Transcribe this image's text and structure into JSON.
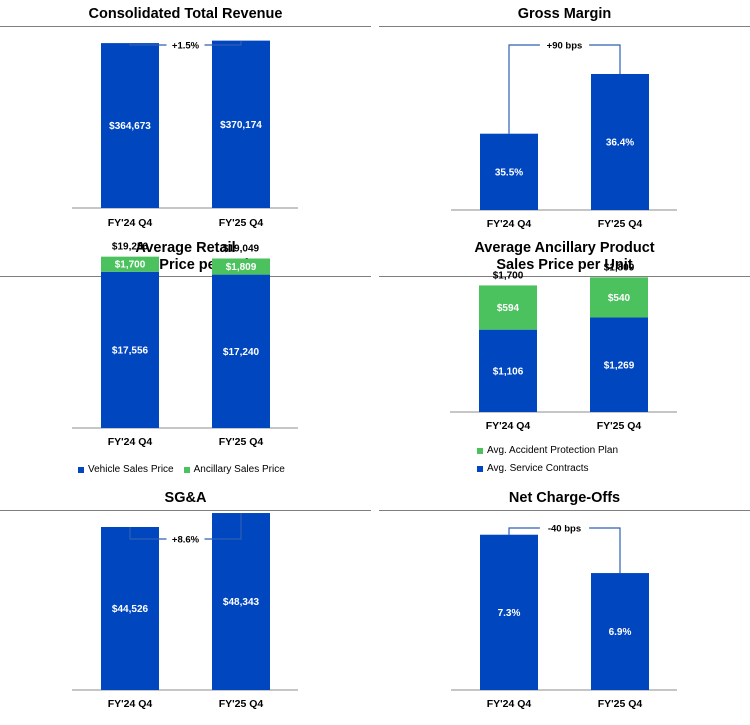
{
  "colors": {
    "primary": "#0046bf",
    "secondary": "#4cc25f",
    "connector": "#2f5fb3",
    "axis": "#8c8c8c",
    "rule": "#7f7f7f"
  },
  "chart_data": [
    {
      "id": "revenue",
      "type": "bar",
      "title": "Consolidated Total Revenue",
      "categories": [
        "FY'24 Q4",
        "FY'25 Q4"
      ],
      "values": [
        364673,
        370174
      ],
      "labels": [
        "$364,673",
        "$370,174"
      ],
      "change_label": "+1.5%",
      "ylim": [
        0,
        460000
      ]
    },
    {
      "id": "gross-margin",
      "type": "bar",
      "title": "Gross Margin",
      "categories": [
        "FY'24 Q4",
        "FY'25 Q4"
      ],
      "values": [
        35.5,
        36.4
      ],
      "labels": [
        "35.5%",
        "36.4%"
      ],
      "change_label": "+90 bps",
      "ylim": [
        34.35,
        37.5
      ]
    },
    {
      "id": "retail-price",
      "type": "bar",
      "stacked": true,
      "title_lines": [
        "Average Retail",
        "Sales Price per Unit"
      ],
      "categories": [
        "FY'24 Q4",
        "FY'25 Q4"
      ],
      "series": [
        {
          "name": "Vehicle Sales Price",
          "values": [
            17556,
            17240
          ],
          "labels": [
            "$17,556",
            "$17,240"
          ]
        },
        {
          "name": "Ancillary Sales Price",
          "values": [
            1700,
            1809
          ],
          "labels": [
            "$1,700",
            "$1,809"
          ]
        }
      ],
      "totals": [
        "$19,256",
        "$19,049"
      ],
      "legend": "bottom",
      "ylim": [
        0,
        23600
      ]
    },
    {
      "id": "ancillary-price",
      "type": "bar",
      "stacked": true,
      "title_lines": [
        "Average Ancillary Product",
        "Sales Price per Unit"
      ],
      "categories": [
        "FY'24 Q4",
        "FY'25 Q4"
      ],
      "series": [
        {
          "name": "Avg. Service Contracts",
          "values": [
            1106,
            1269
          ],
          "labels": [
            "$1,106",
            "$1,269"
          ]
        },
        {
          "name": "Avg. Accident Protection Plan",
          "values": [
            594,
            540
          ],
          "labels": [
            "$594",
            "$540"
          ]
        }
      ],
      "totals": [
        "$1,700",
        "$1,809"
      ],
      "legend": "bottom",
      "ylim": [
        0,
        2525
      ]
    },
    {
      "id": "sga",
      "type": "bar",
      "title": "SG&A",
      "categories": [
        "FY'24 Q4",
        "FY'25 Q4"
      ],
      "values": [
        44526,
        48343
      ],
      "labels": [
        "$44,526",
        "$48,343"
      ],
      "change_label": "+8.6%",
      "ylim": [
        0,
        56000
      ]
    },
    {
      "id": "net-chargeoffs",
      "type": "bar",
      "title": "Net Charge-Offs",
      "categories": [
        "FY'24 Q4",
        "FY'25 Q4"
      ],
      "values": [
        7.3,
        6.9
      ],
      "labels": [
        "7.3%",
        "6.9%"
      ],
      "change_label": "-40 bps",
      "ylim": [
        5.68,
        7.85
      ]
    }
  ]
}
